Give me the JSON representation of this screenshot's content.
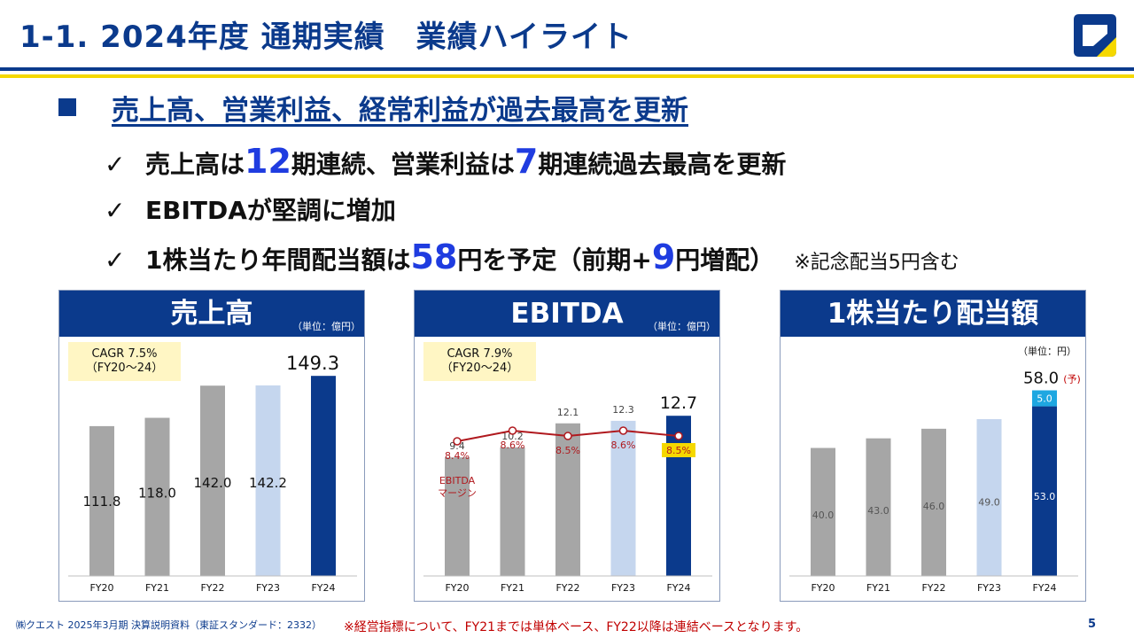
{
  "header": {
    "title": "1-1. 2024年度 通期実績　業績ハイライト"
  },
  "headline": "売上高、営業利益、経常利益が過去最高を更新",
  "bullets": {
    "b1": {
      "t1": "売上高は",
      "n1": "12",
      "t2": "期連続、営業利益は",
      "n2": "7",
      "t3": "期連続過去最高を更新"
    },
    "b2": {
      "t1": "EBITDAが堅調に増加"
    },
    "b3": {
      "t1": "1株当たり年間配当額は",
      "n1": "58",
      "t2": "円を予定（前期+",
      "n2": "9",
      "t3": "円増配）",
      "note": "※記念配当5円含む"
    },
    "check": "✓"
  },
  "chart_data": [
    {
      "type": "bar",
      "title": "売上高",
      "unit": "（単位：億円）",
      "cagr_line1": "CAGR  7.5%",
      "cagr_line2": "（FY20～24）",
      "categories": [
        "FY20",
        "FY21",
        "FY22",
        "FY23",
        "FY24"
      ],
      "values": [
        111.8,
        118.0,
        142.0,
        142.2,
        149.3
      ],
      "value_labels": [
        "111.8",
        "118.0",
        "142.0",
        "142.2",
        "149.3"
      ],
      "ylim": [
        0,
        160
      ],
      "colors": [
        "#a6a6a6",
        "#a6a6a6",
        "#a6a6a6",
        "#c5d6ee",
        "#0b3a8c"
      ]
    },
    {
      "type": "bar",
      "title": "EBITDA",
      "unit": "（単位：億円）",
      "cagr_line1": "CAGR  7.9%",
      "cagr_line2": "（FY20～24）",
      "categories": [
        "FY20",
        "FY21",
        "FY22",
        "FY23",
        "FY24"
      ],
      "values": [
        9.4,
        10.2,
        12.1,
        12.3,
        12.7
      ],
      "value_labels": [
        "9.4",
        "10.2",
        "12.1",
        "12.3",
        "12.7"
      ],
      "ylim": [
        0,
        17
      ],
      "colors": [
        "#a6a6a6",
        "#a6a6a6",
        "#a6a6a6",
        "#c5d6ee",
        "#0b3a8c"
      ],
      "margin_series": {
        "name_line1": "EBITDA",
        "name_line2": "マージン",
        "values": [
          8.4,
          8.6,
          8.5,
          8.6,
          8.5
        ],
        "labels": [
          "8.4%",
          "8.6%",
          "8.5%",
          "8.6%",
          "8.5%"
        ],
        "color": "#b0191e",
        "highlight_color": "#f5d800"
      }
    },
    {
      "type": "bar",
      "title": "1株当たり配当額",
      "unit": "（単位：円）",
      "categories": [
        "FY20",
        "FY21",
        "FY22",
        "FY23",
        "FY24"
      ],
      "values": [
        40.0,
        43.0,
        46.0,
        49.0,
        53.0
      ],
      "value_labels": [
        "40.0",
        "43.0",
        "46.0",
        "49.0",
        "53.0"
      ],
      "stack_top": {
        "value": 5.0,
        "label": "5.0",
        "color": "#1ea7e1"
      },
      "total_label": "58.0",
      "total_suffix": "(予)",
      "ylim": [
        0,
        67
      ],
      "colors": [
        "#a6a6a6",
        "#a6a6a6",
        "#a6a6a6",
        "#c5d6ee",
        "#0b3a8c"
      ]
    }
  ],
  "footer": {
    "company": "㈱クエスト 2025年3月期 決算説明資料（東証スタンダード：2332）",
    "note": "※経営指標について、FY21までは単体ベース、FY22以降は連結ベースとなります。",
    "page": "5"
  },
  "colors": {
    "brand": "#0b3a8c",
    "accent": "#f5d800",
    "number": "#1f3ce0",
    "note_red": "#c00000"
  }
}
